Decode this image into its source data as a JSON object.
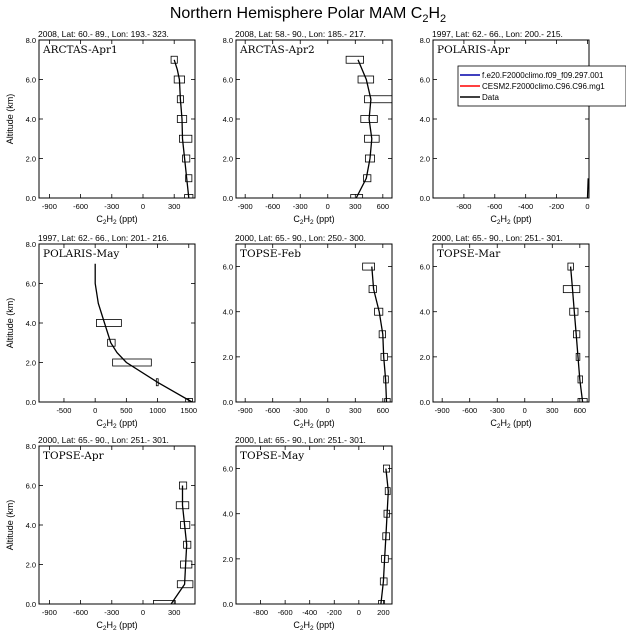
{
  "title": {
    "text": "Northern Hemisphere Polar MAM C",
    "sub": "2",
    "suffix": "H",
    "sub2": "2"
  },
  "legend": {
    "entries": [
      {
        "label": "f.e20.F2000climo.f09_f09.297.001",
        "color": "#0000aa"
      },
      {
        "label": "CESM2.F2000climo.C96.C96.mg1",
        "color": "#ff0000"
      },
      {
        "label": "Data",
        "color": "#000000"
      }
    ]
  },
  "chart_data": [
    {
      "type": "line",
      "panel": "ARCTAS-Apr1",
      "header": "2008, Lat:  60.- 89., Lon: 193.- 323.",
      "xlabel": "C2H2 (ppt)",
      "ylabel": "Altitude (km)",
      "xlim": [
        -1000,
        500
      ],
      "ylim": [
        0,
        8
      ],
      "xticks": [
        -900,
        -600,
        -300,
        0,
        300
      ],
      "yticks": [
        0.0,
        2.0,
        4.0,
        6.0,
        8.0
      ],
      "series": [
        {
          "name": "Data",
          "x": [
            440,
            420,
            400,
            380,
            375,
            360,
            350,
            330,
            300
          ],
          "y": [
            0,
            1,
            2,
            3,
            4,
            5,
            6,
            6.5,
            7
          ]
        }
      ],
      "boxes": [
        {
          "y": 7.0,
          "lo": 270,
          "hi": 330
        },
        {
          "y": 6.0,
          "lo": 300,
          "hi": 400
        },
        {
          "y": 5.0,
          "lo": 330,
          "hi": 390
        },
        {
          "y": 4.0,
          "lo": 330,
          "hi": 420
        },
        {
          "y": 3.0,
          "lo": 350,
          "hi": 470
        },
        {
          "y": 2.0,
          "lo": 380,
          "hi": 450
        },
        {
          "y": 1.0,
          "lo": 410,
          "hi": 470
        },
        {
          "y": 0.0,
          "lo": 400,
          "hi": 480
        }
      ]
    },
    {
      "type": "line",
      "panel": "ARCTAS-Apr2",
      "header": "2008, Lat:  58.- 90., Lon: 185.- 217.",
      "xlabel": "C2H2 (ppt)",
      "ylabel": "",
      "xlim": [
        -1000,
        700
      ],
      "ylim": [
        0,
        8
      ],
      "xticks": [
        -900,
        -600,
        -300,
        0,
        300,
        600
      ],
      "yticks": [
        0.0,
        2.0,
        4.0,
        6.0,
        8.0
      ],
      "series": [
        {
          "name": "Data",
          "x": [
            310,
            420,
            460,
            480,
            450,
            470,
            420,
            330
          ],
          "y": [
            0,
            1,
            2,
            3,
            4,
            5,
            6,
            7
          ]
        }
      ],
      "boxes": [
        {
          "y": 7.0,
          "lo": 200,
          "hi": 390
        },
        {
          "y": 6.0,
          "lo": 330,
          "hi": 500
        },
        {
          "y": 5.0,
          "lo": 400,
          "hi": 700
        },
        {
          "y": 4.0,
          "lo": 360,
          "hi": 540
        },
        {
          "y": 3.0,
          "lo": 400,
          "hi": 560
        },
        {
          "y": 2.0,
          "lo": 410,
          "hi": 510
        },
        {
          "y": 1.0,
          "lo": 390,
          "hi": 470
        },
        {
          "y": 0.0,
          "lo": 250,
          "hi": 380
        }
      ]
    },
    {
      "type": "line",
      "panel": "POLARIS-Apr",
      "header": "1997, Lat: 62.- 66., Lon: 200.- 215.",
      "xlabel": "C2H2 (ppt)",
      "ylabel": "",
      "xlim": [
        -1000,
        10
      ],
      "ylim": [
        0,
        8
      ],
      "xticks": [
        -800,
        -600,
        -400,
        -200,
        0
      ],
      "yticks": [
        0.0,
        2.0,
        4.0,
        6.0,
        8.0
      ],
      "series": [
        {
          "name": "Data",
          "x": [
            0,
            5
          ],
          "y": [
            0,
            1
          ]
        }
      ],
      "boxes": []
    },
    {
      "type": "line",
      "panel": "POLARIS-May",
      "header": "1997, Lat: 62.- 66., Lon: 201.- 216.",
      "xlabel": "C2H2 (ppt)",
      "ylabel": "Altitude (km)",
      "xlim": [
        -900,
        1600
      ],
      "ylim": [
        0,
        8
      ],
      "xticks": [
        -500,
        0,
        500,
        1000,
        1500
      ],
      "yticks": [
        0.0,
        2.0,
        4.0,
        6.0,
        8.0
      ],
      "series": [
        {
          "name": "Data",
          "x": [
            1550,
            1000,
            500,
            350,
            250,
            150,
            50,
            0,
            0
          ],
          "y": [
            0,
            1,
            2,
            2.5,
            3,
            4,
            5,
            6,
            7
          ]
        }
      ],
      "boxes": [
        {
          "y": 4.0,
          "lo": 20,
          "hi": 420
        },
        {
          "y": 3.0,
          "lo": 200,
          "hi": 320
        },
        {
          "y": 2.0,
          "lo": 280,
          "hi": 900
        },
        {
          "y": 1.0,
          "lo": 980,
          "hi": 1010
        },
        {
          "y": 0.0,
          "lo": 1450,
          "hi": 1560
        }
      ]
    },
    {
      "type": "line",
      "panel": "TOPSE-Feb",
      "header": "2000, Lat: 65.- 90., Lon: 250.- 300.",
      "xlabel": "C2H2 (ppt)",
      "ylabel": "",
      "xlim": [
        -1000,
        700
      ],
      "ylim": [
        0,
        7
      ],
      "xticks": [
        -900,
        -600,
        -300,
        0,
        300,
        600
      ],
      "yticks": [
        0.0,
        2.0,
        4.0,
        6.0
      ],
      "series": [
        {
          "name": "Data",
          "x": [
            640,
            630,
            610,
            600,
            560,
            500,
            480
          ],
          "y": [
            0,
            1,
            2,
            3,
            4,
            5,
            6
          ]
        }
      ],
      "boxes": [
        {
          "y": 6.0,
          "lo": 380,
          "hi": 510
        },
        {
          "y": 5.0,
          "lo": 450,
          "hi": 530
        },
        {
          "y": 4.0,
          "lo": 510,
          "hi": 600
        },
        {
          "y": 3.0,
          "lo": 560,
          "hi": 630
        },
        {
          "y": 2.0,
          "lo": 580,
          "hi": 650
        },
        {
          "y": 1.0,
          "lo": 610,
          "hi": 660
        },
        {
          "y": 0.0,
          "lo": 620,
          "hi": 680
        }
      ]
    },
    {
      "type": "line",
      "panel": "TOPSE-Mar",
      "header": "2000, Lat: 65.- 90., Lon: 251.- 301.",
      "xlabel": "C2H2 (ppt)",
      "ylabel": "",
      "xlim": [
        -1000,
        700
      ],
      "ylim": [
        0,
        7
      ],
      "xticks": [
        -900,
        -600,
        -300,
        0,
        300,
        600
      ],
      "yticks": [
        0.0,
        2.0,
        4.0,
        6.0
      ],
      "series": [
        {
          "name": "Data",
          "x": [
            630,
            600,
            580,
            560,
            540,
            520,
            500
          ],
          "y": [
            0,
            1,
            2,
            3,
            4,
            5,
            6
          ]
        }
      ],
      "boxes": [
        {
          "y": 6.0,
          "lo": 470,
          "hi": 530
        },
        {
          "y": 5.0,
          "lo": 420,
          "hi": 600
        },
        {
          "y": 4.0,
          "lo": 490,
          "hi": 580
        },
        {
          "y": 3.0,
          "lo": 530,
          "hi": 600
        },
        {
          "y": 2.0,
          "lo": 560,
          "hi": 600
        },
        {
          "y": 1.0,
          "lo": 580,
          "hi": 630
        },
        {
          "y": 0.0,
          "lo": 580,
          "hi": 680
        }
      ]
    },
    {
      "type": "line",
      "panel": "TOPSE-Apr",
      "header": "2000, Lat: 65.- 90., Lon: 251.- 301.",
      "xlabel": "C2H2 (ppt)",
      "ylabel": "Altitude (km)",
      "xlim": [
        -1000,
        500
      ],
      "ylim": [
        0,
        8
      ],
      "xticks": [
        -900,
        -600,
        -300,
        0,
        300
      ],
      "yticks": [
        0.0,
        2.0,
        4.0,
        6.0,
        8.0
      ],
      "series": [
        {
          "name": "Data",
          "x": [
            270,
            400,
            410,
            420,
            400,
            380,
            380
          ],
          "y": [
            0,
            1,
            2,
            3,
            4,
            5,
            6
          ]
        }
      ],
      "boxes": [
        {
          "y": 6.0,
          "lo": 350,
          "hi": 420
        },
        {
          "y": 5.0,
          "lo": 320,
          "hi": 440
        },
        {
          "y": 4.0,
          "lo": 360,
          "hi": 450
        },
        {
          "y": 3.0,
          "lo": 390,
          "hi": 460
        },
        {
          "y": 2.0,
          "lo": 360,
          "hi": 470
        },
        {
          "y": 1.0,
          "lo": 330,
          "hi": 480
        },
        {
          "y": 0.0,
          "lo": 100,
          "hi": 310
        }
      ]
    },
    {
      "type": "line",
      "panel": "TOPSE-May",
      "header": "2000, Lat: 65.- 90., Lon: 251.- 301.",
      "xlabel": "C2H2 (ppt)",
      "ylabel": "",
      "xlim": [
        -1000,
        270
      ],
      "ylim": [
        0,
        7
      ],
      "xticks": [
        -800,
        -600,
        -400,
        -200,
        0,
        200
      ],
      "yticks": [
        0.0,
        2.0,
        4.0,
        6.0
      ],
      "series": [
        {
          "name": "Data",
          "x": [
            180,
            200,
            210,
            220,
            230,
            240,
            220
          ],
          "y": [
            0,
            1,
            2,
            3,
            4,
            5,
            6
          ]
        }
      ],
      "boxes": [
        {
          "y": 6.0,
          "lo": 200,
          "hi": 250
        },
        {
          "y": 5.0,
          "lo": 215,
          "hi": 255
        },
        {
          "y": 4.0,
          "lo": 205,
          "hi": 250
        },
        {
          "y": 3.0,
          "lo": 195,
          "hi": 250
        },
        {
          "y": 2.0,
          "lo": 185,
          "hi": 240
        },
        {
          "y": 1.0,
          "lo": 175,
          "hi": 230
        },
        {
          "y": 0.0,
          "lo": 160,
          "hi": 210
        }
      ]
    }
  ]
}
